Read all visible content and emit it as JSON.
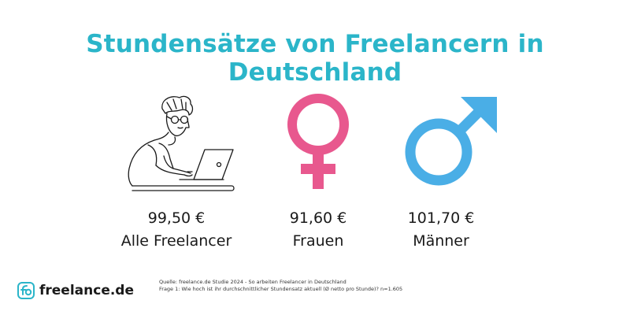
{
  "title": "Stundensätze von Freelancern in Deutschland",
  "colors": {
    "title": "#2bb5c9",
    "female": "#e8588e",
    "male": "#4aaee6",
    "ink": "#1a1a1a"
  },
  "chart_data": {
    "type": "table",
    "title": "Stundensätze von Freelancern in Deutschland",
    "categories": [
      "Alle Freelancer",
      "Frauen",
      "Männer"
    ],
    "values": [
      99.5,
      91.6,
      101.7
    ],
    "value_labels": [
      "99,50 €",
      "91,60 €",
      "101,70 €"
    ],
    "icons": [
      "freelancer-laptop-illustration",
      "female-symbol-icon",
      "male-symbol-icon"
    ]
  },
  "brand": {
    "name": "freelance.de",
    "icon": "freelance-logo-icon"
  },
  "source": {
    "line1": "Quelle: freelance.de Studie 2024 - So arbeiten Freelancer in Deutschland",
    "line2": "Frage 1: Wie hoch ist ihr durchschnittlicher Stundensatz aktuell (Ø netto pro Stunde)? n=1.605"
  }
}
